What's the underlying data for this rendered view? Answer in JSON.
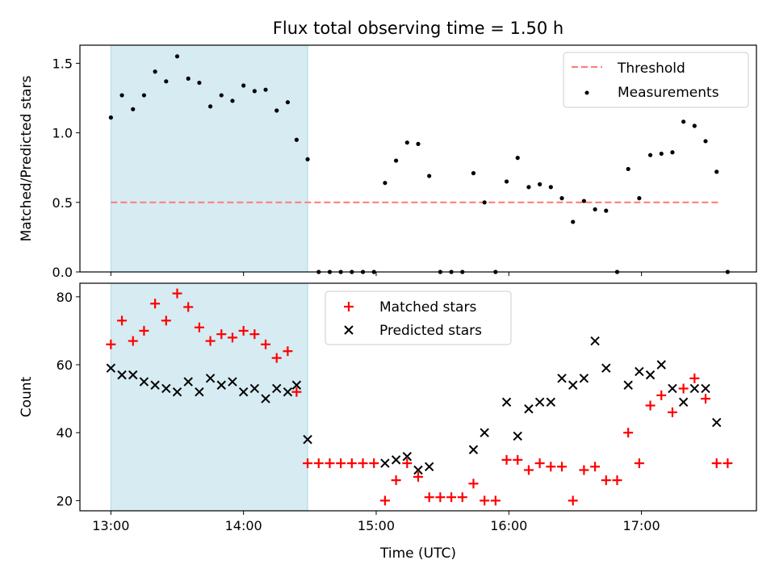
{
  "chart_data": [
    {
      "type": "scatter",
      "title": "Flux total observing time = 1.50 h",
      "xlabel": "",
      "ylabel": "Matched/Predicted stars",
      "xlim": [
        "12:46",
        "17:52"
      ],
      "ylim": [
        0,
        1.63
      ],
      "x_ticks": [
        "13:00",
        "14:00",
        "15:00",
        "16:00",
        "17:00"
      ],
      "x_tick_labels_shown": false,
      "y_ticks": [
        "0.0",
        "0.5",
        "1.0",
        "1.5"
      ],
      "shaded_interval": {
        "x": [
          "13:00",
          "14:29"
        ],
        "color": "#add8e6"
      },
      "grid": false,
      "legend": {
        "location": "upper right",
        "entries": [
          "Threshold",
          "Measurements"
        ]
      },
      "series": [
        {
          "name": "Threshold",
          "style": "dashed-line",
          "color": "#ff7f7f",
          "x": [
            "13:00",
            "17:35"
          ],
          "y": [
            0.5,
            0.5
          ]
        },
        {
          "name": "Measurements",
          "style": "dot",
          "color": "#000000",
          "x": [
            "13:00",
            "13:05",
            "13:10",
            "13:15",
            "13:20",
            "13:25",
            "13:30",
            "13:35",
            "13:40",
            "13:45",
            "13:50",
            "13:55",
            "14:00",
            "14:05",
            "14:10",
            "14:15",
            "14:20",
            "14:24",
            "14:29",
            "14:34",
            "14:39",
            "14:44",
            "14:49",
            "14:54",
            "14:59",
            "15:04",
            "15:09",
            "15:14",
            "15:19",
            "15:24",
            "15:29",
            "15:34",
            "15:39",
            "15:44",
            "15:49",
            "15:54",
            "15:59",
            "16:04",
            "16:09",
            "16:14",
            "16:19",
            "16:24",
            "16:29",
            "16:34",
            "16:39",
            "16:44",
            "16:49",
            "16:54",
            "16:59",
            "17:04",
            "17:09",
            "17:14",
            "17:19",
            "17:24",
            "17:29",
            "17:34",
            "17:39"
          ],
          "y": [
            1.11,
            1.27,
            1.17,
            1.27,
            1.44,
            1.37,
            1.55,
            1.39,
            1.36,
            1.19,
            1.27,
            1.23,
            1.34,
            1.3,
            1.31,
            1.16,
            1.22,
            0.95,
            0.81,
            0.0,
            0.0,
            0.0,
            0.0,
            0.0,
            0.0,
            0.64,
            0.8,
            0.93,
            0.92,
            0.69,
            0.0,
            0.0,
            0.0,
            0.71,
            0.5,
            0.0,
            0.65,
            0.82,
            0.61,
            0.63,
            0.61,
            0.53,
            0.36,
            0.51,
            0.45,
            0.44,
            0.0,
            0.74,
            0.53,
            0.84,
            0.85,
            0.86,
            1.08,
            1.05,
            0.94,
            0.72,
            0.0
          ]
        }
      ]
    },
    {
      "type": "scatter",
      "title": "",
      "xlabel": "Time (UTC)",
      "ylabel": "Count",
      "xlim": [
        "12:46",
        "17:52"
      ],
      "ylim": [
        17,
        84
      ],
      "x_ticks": [
        "13:00",
        "14:00",
        "15:00",
        "16:00",
        "17:00"
      ],
      "y_ticks": [
        "20",
        "40",
        "60",
        "80"
      ],
      "shaded_interval": {
        "x": [
          "13:00",
          "14:29"
        ],
        "color": "#add8e6"
      },
      "grid": false,
      "legend": {
        "location": "upper center",
        "entries": [
          "Matched stars",
          "Predicted stars"
        ]
      },
      "series": [
        {
          "name": "Matched stars",
          "style": "plus",
          "color": "#ff0000",
          "x": [
            "13:00",
            "13:05",
            "13:10",
            "13:15",
            "13:20",
            "13:25",
            "13:30",
            "13:35",
            "13:40",
            "13:45",
            "13:50",
            "13:55",
            "14:00",
            "14:05",
            "14:10",
            "14:15",
            "14:20",
            "14:24",
            "14:29",
            "14:34",
            "14:39",
            "14:44",
            "14:49",
            "14:54",
            "14:59",
            "15:04",
            "15:09",
            "15:14",
            "15:19",
            "15:24",
            "15:29",
            "15:34",
            "15:39",
            "15:44",
            "15:49",
            "15:54",
            "15:59",
            "16:04",
            "16:09",
            "16:14",
            "16:19",
            "16:24",
            "16:29",
            "16:34",
            "16:39",
            "16:44",
            "16:49",
            "16:54",
            "16:59",
            "17:04",
            "17:09",
            "17:14",
            "17:19",
            "17:24",
            "17:29",
            "17:34",
            "17:39"
          ],
          "y": [
            66,
            73,
            67,
            70,
            78,
            73,
            81,
            77,
            71,
            67,
            69,
            68,
            70,
            69,
            66,
            62,
            64,
            52,
            31,
            31,
            31,
            31,
            31,
            31,
            31,
            20,
            26,
            31,
            27,
            21,
            21,
            21,
            21,
            25,
            20,
            20,
            32,
            32,
            29,
            31,
            30,
            30,
            20,
            29,
            30,
            26,
            26,
            40,
            31,
            48,
            51,
            46,
            53,
            56,
            50,
            31,
            31
          ]
        },
        {
          "name": "Predicted stars",
          "style": "x",
          "color": "#000000",
          "x": [
            "13:00",
            "13:05",
            "13:10",
            "13:15",
            "13:20",
            "13:25",
            "13:30",
            "13:35",
            "13:40",
            "13:45",
            "13:50",
            "13:55",
            "14:00",
            "14:05",
            "14:10",
            "14:15",
            "14:20",
            "14:24",
            "14:29",
            "15:04",
            "15:09",
            "15:14",
            "15:19",
            "15:24",
            "15:44",
            "15:49",
            "15:59",
            "16:04",
            "16:09",
            "16:14",
            "16:19",
            "16:24",
            "16:29",
            "16:34",
            "16:39",
            "16:44",
            "16:54",
            "16:59",
            "17:04",
            "17:09",
            "17:14",
            "17:19",
            "17:24",
            "17:29",
            "17:34"
          ],
          "y": [
            59,
            57,
            57,
            55,
            54,
            53,
            52,
            55,
            52,
            56,
            54,
            55,
            52,
            53,
            50,
            53,
            52,
            54,
            38,
            31,
            32,
            33,
            29,
            30,
            35,
            40,
            49,
            39,
            47,
            49,
            49,
            56,
            54,
            56,
            67,
            59,
            54,
            58,
            57,
            60,
            53,
            49,
            53,
            53,
            43
          ]
        }
      ]
    }
  ]
}
